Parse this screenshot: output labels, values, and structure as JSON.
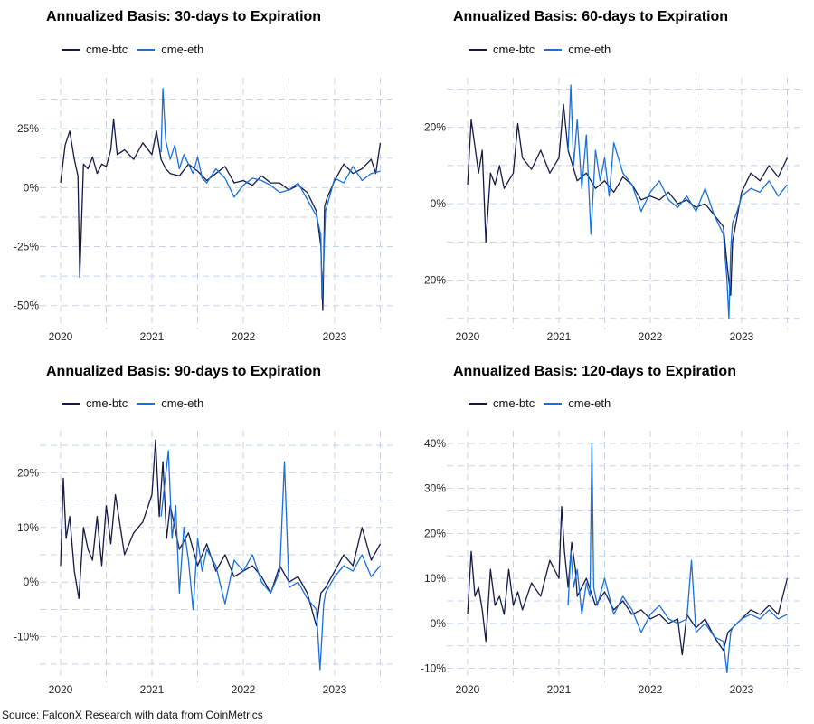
{
  "colors": {
    "cme-btc": "#141a45",
    "cme-eth": "#1a6fdb",
    "grid": "#c8d2e6"
  },
  "source": "Source: FalconX Research with data from CoinMetrics",
  "chart_data": [
    {
      "type": "line",
      "title": "Annualized Basis: 30-days to Expiration",
      "legend_position": "top-left",
      "grid": true,
      "ylim": [
        -57,
        45
      ],
      "xlim": [
        2019.9,
        2023.6
      ],
      "y_ticks": [
        -50,
        -25,
        0,
        25
      ],
      "y_tick_labels": [
        "-50%",
        "-25%",
        "0%",
        "25%"
      ],
      "x_ticks": [
        2020,
        2021,
        2022,
        2023
      ],
      "x_tick_labels": [
        "2020",
        "2021",
        "2022",
        "2023"
      ],
      "series": [
        {
          "name": "cme-btc",
          "color_key": "cme-btc",
          "x": [
            2020.0,
            2020.05,
            2020.1,
            2020.15,
            2020.19,
            2020.21,
            2020.25,
            2020.3,
            2020.35,
            2020.4,
            2020.45,
            2020.5,
            2020.55,
            2020.58,
            2020.62,
            2020.7,
            2020.8,
            2020.9,
            2021.0,
            2021.05,
            2021.1,
            2021.15,
            2021.2,
            2021.3,
            2021.4,
            2021.5,
            2021.6,
            2021.7,
            2021.8,
            2021.9,
            2022.0,
            2022.1,
            2022.2,
            2022.3,
            2022.4,
            2022.5,
            2022.6,
            2022.7,
            2022.8,
            2022.85,
            2022.87,
            2022.89,
            2022.92,
            2023.0,
            2023.1,
            2023.2,
            2023.3,
            2023.4,
            2023.45,
            2023.5
          ],
          "y": [
            2,
            18,
            24,
            12,
            5,
            -38,
            10,
            8,
            13,
            6,
            10,
            9,
            16,
            29,
            14,
            16,
            12,
            19,
            14,
            24,
            12,
            8,
            6,
            5,
            10,
            7,
            3,
            6,
            9,
            2,
            3,
            1,
            5,
            2,
            2,
            -1,
            1,
            -2,
            -10,
            -25,
            -52,
            -8,
            -4,
            3,
            10,
            6,
            8,
            12,
            6,
            19
          ]
        },
        {
          "name": "cme-eth",
          "color_key": "cme-eth",
          "x": [
            2021.1,
            2021.12,
            2021.15,
            2021.2,
            2021.25,
            2021.3,
            2021.35,
            2021.4,
            2021.45,
            2021.5,
            2021.55,
            2021.6,
            2021.7,
            2021.8,
            2021.9,
            2022.0,
            2022.1,
            2022.2,
            2022.3,
            2022.4,
            2022.5,
            2022.6,
            2022.7,
            2022.8,
            2022.85,
            2022.86,
            2022.88,
            2022.9,
            2022.95,
            2023.0,
            2023.1,
            2023.2,
            2023.3,
            2023.4,
            2023.5
          ],
          "y": [
            15,
            42,
            20,
            12,
            18,
            8,
            14,
            10,
            6,
            13,
            4,
            2,
            8,
            4,
            -4,
            1,
            4,
            3,
            1,
            -2,
            -1,
            2,
            -5,
            -12,
            -20,
            -47,
            -32,
            -10,
            -3,
            4,
            2,
            9,
            3,
            6,
            7
          ]
        }
      ]
    },
    {
      "type": "line",
      "title": "Annualized Basis: 60-days to Expiration",
      "legend_position": "top-left",
      "grid": true,
      "ylim": [
        -31,
        32
      ],
      "xlim": [
        2019.9,
        2023.6
      ],
      "y_ticks": [
        -20,
        0,
        20
      ],
      "y_tick_labels": [
        "-20%",
        "0%",
        "20%"
      ],
      "x_ticks": [
        2020,
        2021,
        2022,
        2023
      ],
      "x_tick_labels": [
        "2020",
        "2021",
        "2022",
        "2023"
      ],
      "series": [
        {
          "name": "cme-btc",
          "color_key": "cme-btc",
          "x": [
            2020.0,
            2020.04,
            2020.08,
            2020.12,
            2020.16,
            2020.2,
            2020.25,
            2020.3,
            2020.35,
            2020.4,
            2020.5,
            2020.55,
            2020.6,
            2020.7,
            2020.8,
            2020.9,
            2021.0,
            2021.05,
            2021.1,
            2021.15,
            2021.2,
            2021.3,
            2021.4,
            2021.5,
            2021.6,
            2021.7,
            2021.8,
            2021.9,
            2022.0,
            2022.1,
            2022.2,
            2022.3,
            2022.4,
            2022.5,
            2022.6,
            2022.7,
            2022.8,
            2022.85,
            2022.88,
            2022.9,
            2023.0,
            2023.1,
            2023.2,
            2023.3,
            2023.4,
            2023.5
          ],
          "y": [
            5,
            22,
            15,
            8,
            14,
            -10,
            8,
            5,
            10,
            4,
            8,
            21,
            12,
            9,
            14,
            8,
            12,
            26,
            14,
            10,
            6,
            8,
            4,
            6,
            3,
            7,
            5,
            1,
            2,
            1,
            3,
            0,
            1,
            -1,
            0,
            -3,
            -6,
            -18,
            -24,
            -10,
            3,
            8,
            6,
            10,
            7,
            12
          ]
        },
        {
          "name": "cme-eth",
          "color_key": "cme-eth",
          "x": [
            2021.1,
            2021.13,
            2021.16,
            2021.2,
            2021.25,
            2021.3,
            2021.35,
            2021.4,
            2021.45,
            2021.5,
            2021.55,
            2021.6,
            2021.7,
            2021.8,
            2021.9,
            2022.0,
            2022.1,
            2022.2,
            2022.3,
            2022.4,
            2022.5,
            2022.6,
            2022.7,
            2022.8,
            2022.84,
            2022.86,
            2022.88,
            2022.9,
            2022.95,
            2023.0,
            2023.1,
            2023.2,
            2023.3,
            2023.4,
            2023.5
          ],
          "y": [
            14,
            31,
            10,
            22,
            4,
            18,
            -8,
            14,
            6,
            12,
            2,
            16,
            8,
            5,
            -2,
            3,
            6,
            1,
            -1,
            2,
            -2,
            4,
            -3,
            -8,
            -20,
            -30,
            -12,
            -5,
            -2,
            2,
            4,
            3,
            6,
            2,
            5
          ]
        }
      ]
    },
    {
      "type": "line",
      "title": "Annualized Basis: 90-days to Expiration",
      "legend_position": "top-left",
      "grid": true,
      "ylim": [
        -17,
        27
      ],
      "xlim": [
        2019.9,
        2023.6
      ],
      "y_ticks": [
        -10,
        0,
        10,
        20
      ],
      "y_tick_labels": [
        "-10%",
        "0%",
        "10%",
        "20%"
      ],
      "x_ticks": [
        2020,
        2021,
        2022,
        2023
      ],
      "x_tick_labels": [
        "2020",
        "2021",
        "2022",
        "2023"
      ],
      "series": [
        {
          "name": "cme-btc",
          "color_key": "cme-btc",
          "x": [
            2020.0,
            2020.03,
            2020.06,
            2020.1,
            2020.15,
            2020.2,
            2020.25,
            2020.3,
            2020.35,
            2020.4,
            2020.45,
            2020.5,
            2020.55,
            2020.6,
            2020.7,
            2020.8,
            2020.9,
            2021.0,
            2021.04,
            2021.08,
            2021.12,
            2021.16,
            2021.2,
            2021.3,
            2021.4,
            2021.5,
            2021.6,
            2021.7,
            2021.8,
            2021.9,
            2022.0,
            2022.1,
            2022.2,
            2022.3,
            2022.4,
            2022.5,
            2022.6,
            2022.7,
            2022.8,
            2022.85,
            2022.9,
            2023.0,
            2023.1,
            2023.2,
            2023.3,
            2023.4,
            2023.5
          ],
          "y": [
            3,
            19,
            8,
            12,
            2,
            -3,
            10,
            6,
            4,
            12,
            3,
            14,
            7,
            16,
            5,
            9,
            11,
            16,
            26,
            12,
            22,
            8,
            14,
            6,
            9,
            3,
            7,
            2,
            5,
            1,
            2,
            3,
            1,
            -2,
            3,
            0,
            1,
            -2,
            -8,
            -2,
            -1,
            2,
            5,
            3,
            10,
            4,
            7
          ]
        },
        {
          "name": "cme-eth",
          "color_key": "cme-eth",
          "x": [
            2021.1,
            2021.14,
            2021.18,
            2021.22,
            2021.26,
            2021.3,
            2021.35,
            2021.4,
            2021.45,
            2021.5,
            2021.55,
            2021.6,
            2021.7,
            2021.8,
            2021.9,
            2022.0,
            2022.1,
            2022.2,
            2022.3,
            2022.4,
            2022.45,
            2022.5,
            2022.6,
            2022.7,
            2022.8,
            2022.84,
            2022.86,
            2022.88,
            2022.9,
            2023.0,
            2023.1,
            2023.2,
            2023.3,
            2023.4,
            2023.5
          ],
          "y": [
            12,
            18,
            24,
            8,
            14,
            -2,
            10,
            4,
            -5,
            8,
            2,
            6,
            3,
            -4,
            4,
            2,
            5,
            0,
            -2,
            2,
            22,
            -1,
            0,
            -3,
            -5,
            -16,
            -10,
            -4,
            -2,
            1,
            3,
            2,
            5,
            1,
            3
          ]
        }
      ]
    },
    {
      "type": "line",
      "title": "Annualized Basis: 120-days to Expiration",
      "legend_position": "top-left",
      "grid": true,
      "ylim": [
        -11.5,
        42
      ],
      "xlim": [
        2019.9,
        2023.6
      ],
      "y_ticks": [
        -10,
        0,
        10,
        20,
        30,
        40
      ],
      "y_tick_labels": [
        "-10%",
        "0%",
        "10%",
        "20%",
        "30%",
        "40%"
      ],
      "x_ticks": [
        2020,
        2021,
        2022,
        2023
      ],
      "x_tick_labels": [
        "2020",
        "2021",
        "2022",
        "2023"
      ],
      "series": [
        {
          "name": "cme-btc",
          "color_key": "cme-btc",
          "x": [
            2020.0,
            2020.04,
            2020.08,
            2020.12,
            2020.16,
            2020.2,
            2020.25,
            2020.3,
            2020.35,
            2020.4,
            2020.45,
            2020.5,
            2020.55,
            2020.6,
            2020.7,
            2020.8,
            2020.9,
            2021.0,
            2021.03,
            2021.06,
            2021.1,
            2021.14,
            2021.18,
            2021.2,
            2021.3,
            2021.4,
            2021.5,
            2021.6,
            2021.7,
            2021.8,
            2021.9,
            2022.0,
            2022.1,
            2022.2,
            2022.3,
            2022.35,
            2022.4,
            2022.5,
            2022.6,
            2022.7,
            2022.8,
            2022.85,
            2022.9,
            2023.0,
            2023.1,
            2023.2,
            2023.3,
            2023.4,
            2023.5
          ],
          "y": [
            2,
            16,
            6,
            8,
            3,
            -4,
            12,
            4,
            6,
            2,
            12,
            4,
            7,
            3,
            9,
            6,
            14,
            10,
            26,
            16,
            8,
            18,
            12,
            6,
            10,
            4,
            7,
            3,
            5,
            2,
            3,
            1,
            2,
            0,
            1,
            -7,
            2,
            -1,
            1,
            -3,
            -6,
            -2,
            -1,
            1,
            3,
            2,
            4,
            2,
            10
          ]
        },
        {
          "name": "cme-eth",
          "color_key": "cme-eth",
          "x": [
            2021.1,
            2021.13,
            2021.16,
            2021.2,
            2021.25,
            2021.3,
            2021.34,
            2021.36,
            2021.38,
            2021.42,
            2021.5,
            2021.6,
            2021.7,
            2021.8,
            2021.9,
            2022.0,
            2022.1,
            2022.2,
            2022.3,
            2022.4,
            2022.45,
            2022.5,
            2022.6,
            2022.7,
            2022.8,
            2022.84,
            2022.86,
            2022.88,
            2022.9,
            2023.0,
            2023.1,
            2023.2,
            2023.3,
            2023.4,
            2023.5
          ],
          "y": [
            4,
            16,
            8,
            12,
            2,
            9,
            6,
            40,
            8,
            4,
            10,
            2,
            6,
            3,
            -2,
            2,
            4,
            1,
            0,
            1,
            14,
            -2,
            0,
            -3,
            -4,
            -11,
            -6,
            -2,
            -1,
            1,
            2,
            1,
            3,
            1,
            2
          ]
        }
      ]
    }
  ]
}
